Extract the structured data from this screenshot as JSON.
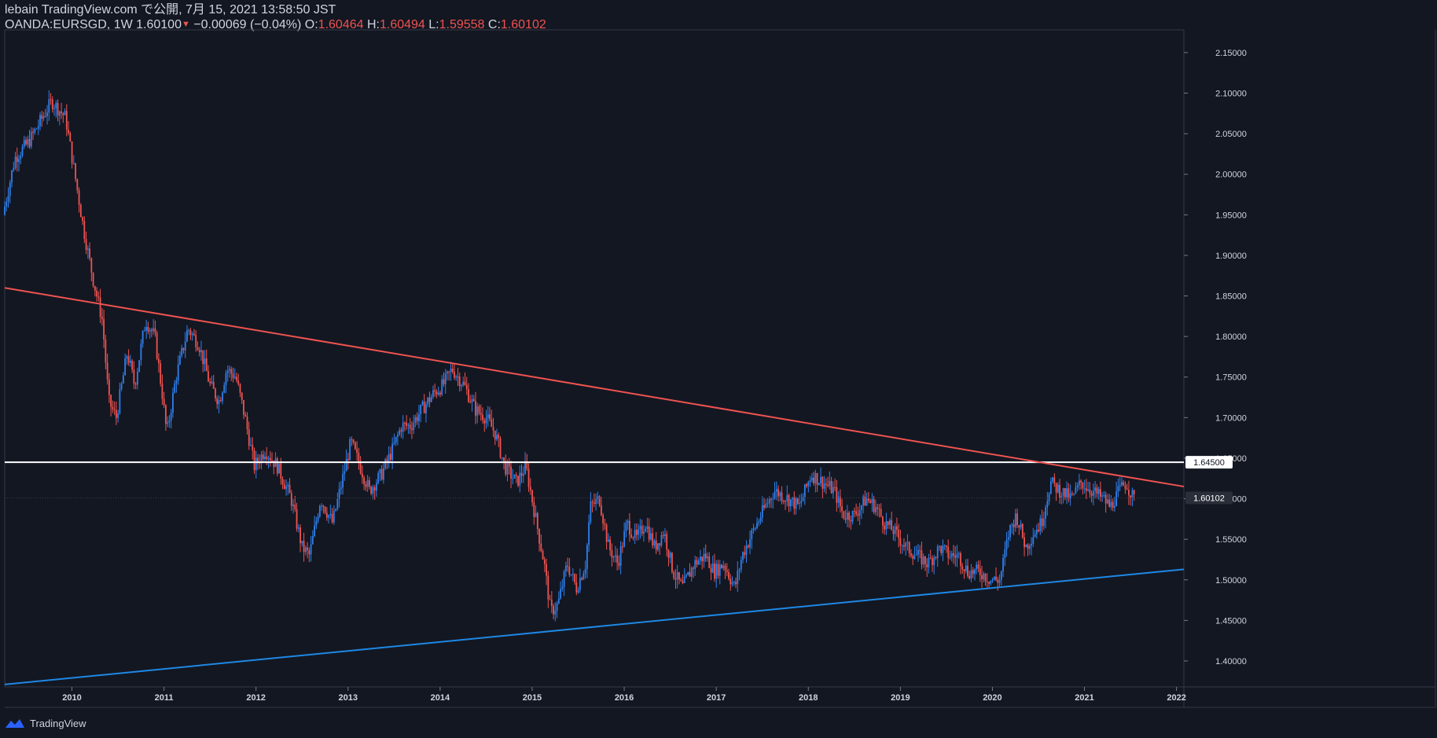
{
  "header": {
    "line1": "lebain TradingView.com で公開, 7月 15, 2021 13:58:50 JST",
    "symbol": "OANDA:EURSGD, 1W",
    "last": "1.60100",
    "change": "−0.00069 (−0.04%)",
    "o_label": "O:",
    "o_value": "1.60464",
    "h_label": "H:",
    "h_value": "1.60494",
    "l_label": "L:",
    "l_value": "1.59558",
    "c_label": "C:",
    "c_value": "1.60102"
  },
  "footer": {
    "brand": "TradingView"
  },
  "colors": {
    "background": "#131722",
    "up": "#2f80ed",
    "down": "#ef5350",
    "resistance": "#ef5350",
    "support": "#1e88e5",
    "level": "#ffffff",
    "axis_text": "#d1d4dc"
  },
  "chart_data": {
    "type": "candlestick",
    "timeframe": "1W",
    "x_ticks": [
      "2010",
      "2011",
      "2012",
      "2013",
      "2014",
      "2015",
      "2016",
      "2017",
      "2018",
      "2019",
      "2020",
      "2021",
      "2022"
    ],
    "y_ticks": [
      "1.40000",
      "1.45000",
      "1.50000",
      "1.55000",
      "1.60000",
      "1.65000",
      "1.70000",
      "1.75000",
      "1.80000",
      "1.85000",
      "1.90000",
      "1.95000",
      "2.00000",
      "2.05000",
      "2.10000",
      "2.15000"
    ],
    "xlim": [
      2009.27,
      2022.08
    ],
    "ylim": [
      1.368,
      2.178
    ],
    "last_price_label": "1.60102",
    "horizontal_level": {
      "value": 1.645,
      "label": "1.64500"
    },
    "trendlines": [
      {
        "name": "resistance",
        "from": [
          2009.27,
          1.86
        ],
        "to": [
          2022.08,
          1.615
        ]
      },
      {
        "name": "support",
        "from": [
          2009.27,
          1.371
        ],
        "to": [
          2022.08,
          1.513
        ]
      }
    ],
    "price_path": [
      [
        2009.27,
        1.95
      ],
      [
        2009.4,
        2.02
      ],
      [
        2009.55,
        2.04
      ],
      [
        2009.7,
        2.07
      ],
      [
        2009.8,
        2.09
      ],
      [
        2009.95,
        2.07
      ],
      [
        2010.05,
        2.0
      ],
      [
        2010.15,
        1.93
      ],
      [
        2010.25,
        1.87
      ],
      [
        2010.35,
        1.82
      ],
      [
        2010.42,
        1.72
      ],
      [
        2010.5,
        1.7
      ],
      [
        2010.62,
        1.78
      ],
      [
        2010.7,
        1.74
      ],
      [
        2010.82,
        1.82
      ],
      [
        2010.92,
        1.8
      ],
      [
        2011.0,
        1.73
      ],
      [
        2011.05,
        1.68
      ],
      [
        2011.15,
        1.75
      ],
      [
        2011.28,
        1.81
      ],
      [
        2011.4,
        1.79
      ],
      [
        2011.52,
        1.74
      ],
      [
        2011.62,
        1.72
      ],
      [
        2011.7,
        1.76
      ],
      [
        2011.8,
        1.75
      ],
      [
        2011.9,
        1.7
      ],
      [
        2012.0,
        1.64
      ],
      [
        2012.12,
        1.66
      ],
      [
        2012.25,
        1.64
      ],
      [
        2012.4,
        1.6
      ],
      [
        2012.52,
        1.54
      ],
      [
        2012.6,
        1.53
      ],
      [
        2012.72,
        1.6
      ],
      [
        2012.85,
        1.57
      ],
      [
        2012.95,
        1.62
      ],
      [
        2013.05,
        1.67
      ],
      [
        2013.15,
        1.64
      ],
      [
        2013.25,
        1.61
      ],
      [
        2013.38,
        1.63
      ],
      [
        2013.5,
        1.66
      ],
      [
        2013.6,
        1.69
      ],
      [
        2013.7,
        1.69
      ],
      [
        2013.82,
        1.71
      ],
      [
        2013.95,
        1.73
      ],
      [
        2014.05,
        1.74
      ],
      [
        2014.15,
        1.76
      ],
      [
        2014.28,
        1.74
      ],
      [
        2014.4,
        1.71
      ],
      [
        2014.52,
        1.7
      ],
      [
        2014.62,
        1.68
      ],
      [
        2014.72,
        1.64
      ],
      [
        2014.85,
        1.62
      ],
      [
        2014.95,
        1.64
      ],
      [
        2015.05,
        1.58
      ],
      [
        2015.15,
        1.52
      ],
      [
        2015.22,
        1.46
      ],
      [
        2015.3,
        1.47
      ],
      [
        2015.4,
        1.52
      ],
      [
        2015.5,
        1.49
      ],
      [
        2015.6,
        1.52
      ],
      [
        2015.65,
        1.59
      ],
      [
        2015.75,
        1.6
      ],
      [
        2015.85,
        1.54
      ],
      [
        2015.95,
        1.52
      ],
      [
        2016.05,
        1.57
      ],
      [
        2016.15,
        1.55
      ],
      [
        2016.25,
        1.57
      ],
      [
        2016.35,
        1.54
      ],
      [
        2016.45,
        1.56
      ],
      [
        2016.55,
        1.51
      ],
      [
        2016.65,
        1.49
      ],
      [
        2016.78,
        1.52
      ],
      [
        2016.9,
        1.53
      ],
      [
        2017.0,
        1.51
      ],
      [
        2017.1,
        1.52
      ],
      [
        2017.22,
        1.49
      ],
      [
        2017.3,
        1.53
      ],
      [
        2017.42,
        1.56
      ],
      [
        2017.55,
        1.59
      ],
      [
        2017.65,
        1.61
      ],
      [
        2017.8,
        1.6
      ],
      [
        2017.92,
        1.59
      ],
      [
        2018.05,
        1.63
      ],
      [
        2018.18,
        1.62
      ],
      [
        2018.3,
        1.61
      ],
      [
        2018.4,
        1.58
      ],
      [
        2018.52,
        1.58
      ],
      [
        2018.65,
        1.6
      ],
      [
        2018.75,
        1.59
      ],
      [
        2018.85,
        1.57
      ],
      [
        2018.95,
        1.56
      ],
      [
        2019.08,
        1.54
      ],
      [
        2019.2,
        1.53
      ],
      [
        2019.32,
        1.52
      ],
      [
        2019.45,
        1.54
      ],
      [
        2019.55,
        1.53
      ],
      [
        2019.65,
        1.53
      ],
      [
        2019.75,
        1.51
      ],
      [
        2019.88,
        1.51
      ],
      [
        2020.0,
        1.5
      ],
      [
        2020.1,
        1.5
      ],
      [
        2020.2,
        1.56
      ],
      [
        2020.28,
        1.58
      ],
      [
        2020.38,
        1.54
      ],
      [
        2020.48,
        1.56
      ],
      [
        2020.55,
        1.57
      ],
      [
        2020.65,
        1.62
      ],
      [
        2020.75,
        1.61
      ],
      [
        2020.88,
        1.6
      ],
      [
        2020.98,
        1.62
      ],
      [
        2021.1,
        1.61
      ],
      [
        2021.22,
        1.6
      ],
      [
        2021.3,
        1.59
      ],
      [
        2021.4,
        1.61
      ],
      [
        2021.47,
        1.62
      ],
      [
        2021.55,
        1.6
      ]
    ]
  }
}
